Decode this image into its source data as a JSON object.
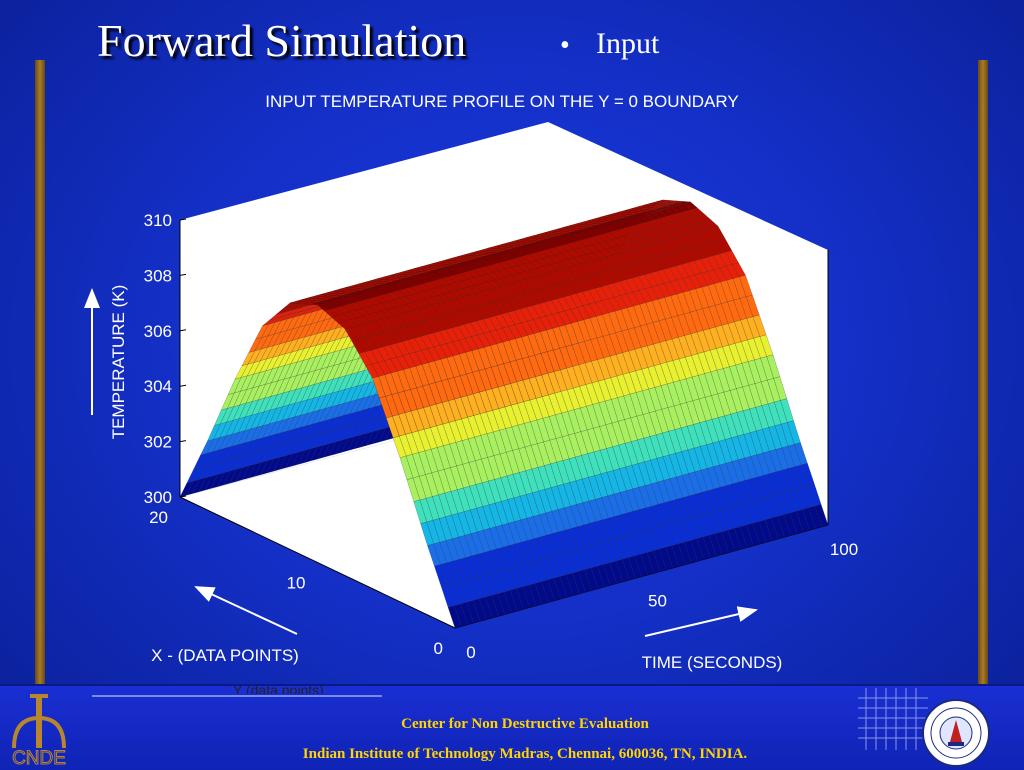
{
  "slide": {
    "title": "Forward Simulation",
    "bullet": "•",
    "bullet_text": "Input"
  },
  "footer": {
    "line1": "Center for Non Destructive Evaluation",
    "line2": "Indian Institute of Technology Madras, Chennai, 600036, TN, INDIA.",
    "logo_text": "CNDE",
    "cut_text": "Y (data points)"
  },
  "colors": {
    "background": "#1430c8",
    "side_bar": "#a87a2a",
    "footer_text": "#ffd400",
    "surface_colormap": [
      "#000a8a",
      "#0a2ed6",
      "#1a6fe8",
      "#15b6e6",
      "#3fe0bc",
      "#a8f060",
      "#e8f030",
      "#ffb020",
      "#ff6a10",
      "#e8200a",
      "#b00a00",
      "#800000"
    ]
  },
  "chart_data": {
    "type": "surface3d",
    "title": "INPUT TEMPERATURE PROFILE ON THE Y = 0 BOUNDARY",
    "zlabel": "TEMPERATURE (K)",
    "xlabel": "X - (DATA POINTS)",
    "ylabel": "TIME (SECONDS)",
    "z_ticks": [
      "310",
      "308",
      "306",
      "304",
      "302",
      "300"
    ],
    "x_ticks": [
      "20",
      "10",
      "0"
    ],
    "time_ticks": [
      "0",
      "50",
      "100"
    ],
    "zlim": [
      300,
      310
    ],
    "xlim": [
      0,
      20
    ],
    "time_lim": [
      0,
      100
    ],
    "profile": {
      "x": [
        0,
        2,
        4,
        6,
        8,
        10,
        12,
        14,
        16,
        18,
        20
      ],
      "temperature": [
        300,
        302.5,
        305.2,
        307.6,
        308.9,
        309.3,
        308.9,
        307.6,
        305.2,
        302.5,
        300
      ]
    },
    "constant_in_time": true
  }
}
